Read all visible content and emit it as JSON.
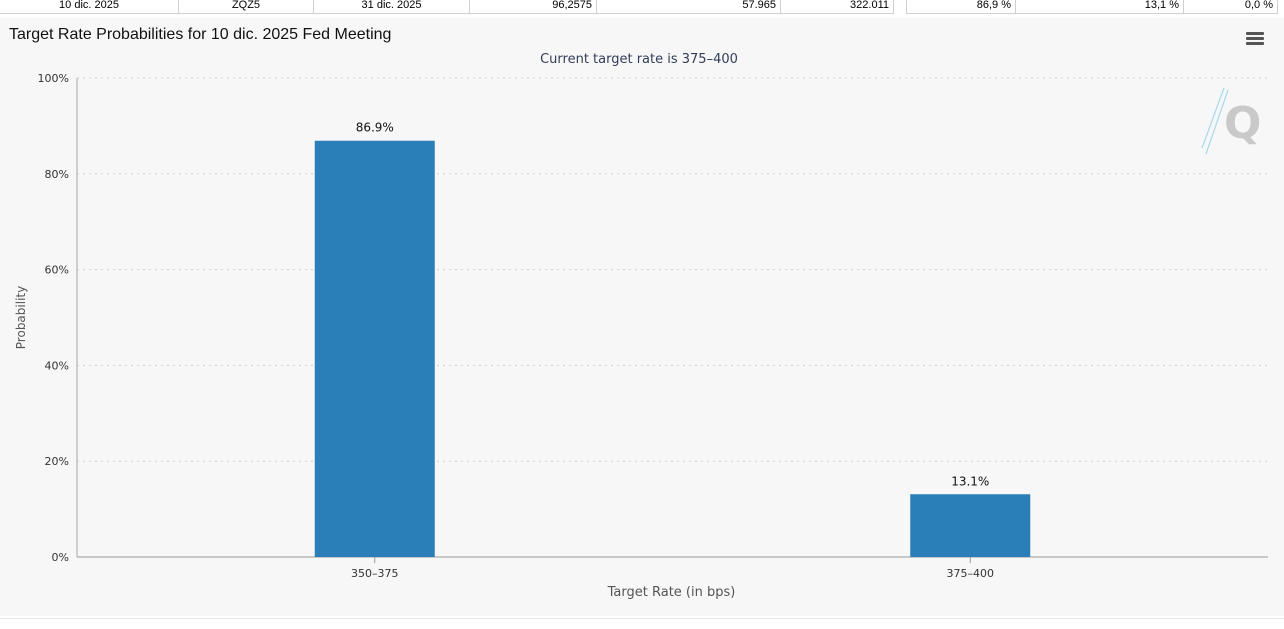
{
  "top_row": {
    "meeting_date": "10 dic. 2025",
    "contract": "ZQZ5",
    "expires": "31 dic. 2025",
    "mid_price": "96,2575",
    "prior_volume": "57.965",
    "prior_oi": "322.011",
    "prob_1": "86,9 %",
    "prob_2": "13,1 %",
    "prob_3": "0,0 %"
  },
  "menu_icon": "hamburger-menu-icon",
  "watermark": "Q",
  "chart_data": {
    "type": "bar",
    "title": "Target Rate Probabilities for 10 dic. 2025 Fed Meeting",
    "subtitle": "Current target rate is 375–400",
    "xlabel": "Target Rate (in bps)",
    "ylabel": "Probability",
    "categories": [
      "350–375",
      "375–400"
    ],
    "values": [
      86.9,
      13.1
    ],
    "data_labels": [
      "86.9%",
      "13.1%"
    ],
    "ylim": [
      0,
      100
    ],
    "yticks": [
      0,
      20,
      40,
      60,
      80,
      100
    ],
    "ytick_labels": [
      "0%",
      "20%",
      "40%",
      "60%",
      "80%",
      "100%"
    ],
    "bar_color": "#2a7fb8",
    "grid": true,
    "legend": "none"
  }
}
